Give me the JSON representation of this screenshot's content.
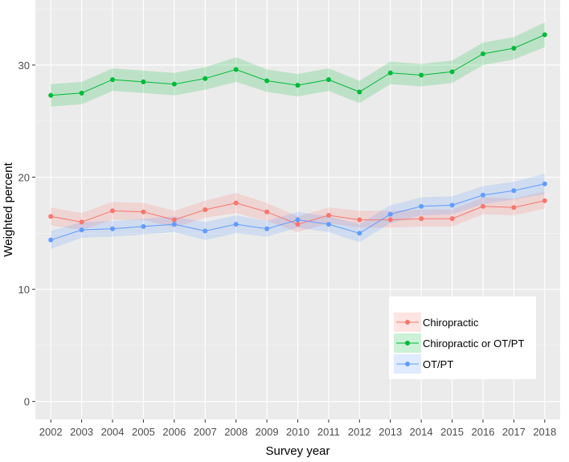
{
  "chart_data": {
    "type": "line",
    "title": "",
    "xlabel": "Survey year",
    "ylabel": "Weighted percent",
    "x": [
      2002,
      2003,
      2004,
      2005,
      2006,
      2007,
      2008,
      2009,
      2010,
      2011,
      2012,
      2013,
      2014,
      2015,
      2016,
      2017,
      2018
    ],
    "yticks": [
      0,
      10,
      20,
      30
    ],
    "ylim": [
      -1.6,
      35.8
    ],
    "grid": true,
    "legend_position": "bottom-right",
    "series": [
      {
        "name": "Chiropractic",
        "color": "#F8766D",
        "values": [
          16.5,
          16.0,
          17.0,
          16.9,
          16.2,
          17.1,
          17.7,
          16.9,
          15.8,
          16.6,
          16.2,
          16.2,
          16.3,
          16.3,
          17.4,
          17.3,
          17.9
        ],
        "ci_low": [
          15.7,
          15.3,
          16.2,
          16.2,
          15.5,
          16.4,
          16.8,
          16.1,
          15.1,
          15.9,
          15.5,
          15.5,
          15.6,
          15.6,
          16.7,
          16.6,
          17.2
        ],
        "ci_high": [
          17.3,
          16.8,
          17.8,
          17.7,
          17.0,
          17.9,
          18.6,
          17.7,
          16.5,
          17.3,
          17.0,
          17.0,
          17.1,
          17.1,
          18.2,
          18.1,
          18.7
        ]
      },
      {
        "name": "Chiropractic or OT/PT",
        "color": "#00BA38",
        "values": [
          27.3,
          27.5,
          28.7,
          28.5,
          28.3,
          28.8,
          29.6,
          28.6,
          28.2,
          28.7,
          27.6,
          29.3,
          29.1,
          29.4,
          31.0,
          31.5,
          32.7
        ],
        "ci_low": [
          26.3,
          26.5,
          27.7,
          27.5,
          27.3,
          27.8,
          28.5,
          27.6,
          27.2,
          27.7,
          26.6,
          28.3,
          28.1,
          28.4,
          30.0,
          30.5,
          31.6
        ],
        "ci_high": [
          28.3,
          28.5,
          29.7,
          29.5,
          29.3,
          29.8,
          30.7,
          29.6,
          29.2,
          29.7,
          28.6,
          30.3,
          30.1,
          30.4,
          32.0,
          32.5,
          33.8
        ]
      },
      {
        "name": "OT/PT",
        "color": "#619CFF",
        "values": [
          14.4,
          15.3,
          15.4,
          15.6,
          15.8,
          15.2,
          15.8,
          15.4,
          16.2,
          15.8,
          15.0,
          16.7,
          17.4,
          17.5,
          18.4,
          18.8,
          19.4
        ],
        "ci_low": [
          13.6,
          14.6,
          14.7,
          14.9,
          15.1,
          14.4,
          15.0,
          14.7,
          15.5,
          15.1,
          14.2,
          15.9,
          16.6,
          16.7,
          17.6,
          18.0,
          18.5
        ],
        "ci_high": [
          15.2,
          16.0,
          16.1,
          16.3,
          16.5,
          16.0,
          16.6,
          16.1,
          16.9,
          16.5,
          15.8,
          17.5,
          18.2,
          18.3,
          19.2,
          19.6,
          20.3
        ]
      }
    ]
  }
}
